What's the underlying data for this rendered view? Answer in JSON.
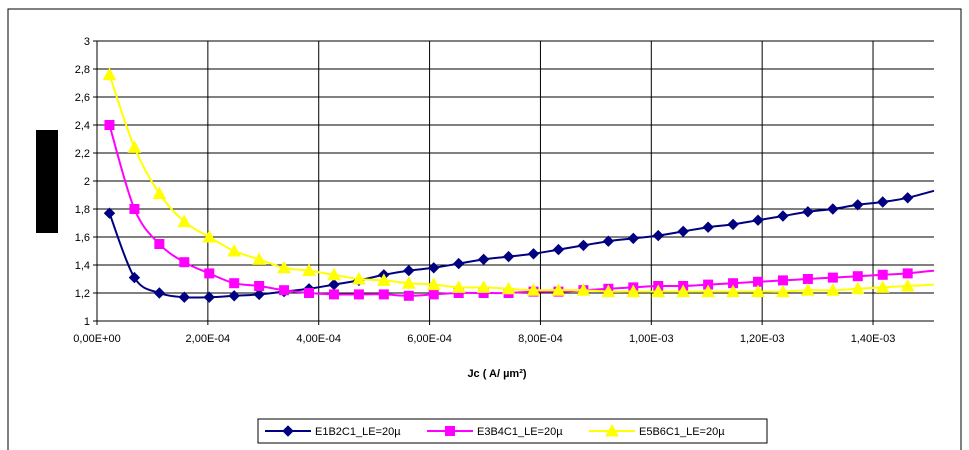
{
  "chart_data": {
    "type": "line",
    "title": "",
    "xlabel": "Jc ( A/ µm²)",
    "ylabel": "",
    "xlim": [
      0,
      0.00151
    ],
    "ylim": [
      1,
      3
    ],
    "grid": true,
    "legend_position": "bottom",
    "x_ticks": [
      0,
      0.0002,
      0.0004,
      0.0006,
      0.0008,
      0.001,
      0.0012,
      0.0014
    ],
    "x_tick_labels": [
      "0,00E+00",
      "2,00E-04",
      "4,00E-04",
      "6,00E-04",
      "8,00E-04",
      "1,00E-03",
      "1,20E-03",
      "1,40E-03"
    ],
    "y_ticks": [
      1,
      1.2,
      1.4,
      1.6,
      1.8,
      2,
      2.2,
      2.4,
      2.6,
      2.8,
      3
    ],
    "y_tick_labels": [
      "1",
      "1,2",
      "1,4",
      "1,6",
      "1,8",
      "2",
      "2,2",
      "2,4",
      "2,6",
      "2,8",
      "3"
    ],
    "x": [
      2.25e-05,
      6.75e-05,
      0.0001125,
      0.0001575,
      0.0002025,
      0.0002475,
      0.0002925,
      0.0003375,
      0.0003825,
      0.0004275,
      0.0004725,
      0.0005175,
      0.0005625,
      0.0006075,
      0.0006525,
      0.0006975,
      0.0007425,
      0.0007875,
      0.0008325,
      0.0008775,
      0.0009225,
      0.0009675,
      0.0010125,
      0.0010575,
      0.0011025,
      0.0011475,
      0.0011925,
      0.0012375,
      0.0012825,
      0.0013275,
      0.0013725,
      0.0014175,
      0.0014625
    ],
    "series": [
      {
        "name": "E1B2C1_LE=20µ",
        "color": "#000080",
        "marker": "diamond",
        "values": [
          1.77,
          1.31,
          1.2,
          1.17,
          1.17,
          1.18,
          1.19,
          1.21,
          1.23,
          1.26,
          1.29,
          1.33,
          1.36,
          1.38,
          1.41,
          1.44,
          1.46,
          1.48,
          1.51,
          1.54,
          1.57,
          1.59,
          1.61,
          1.64,
          1.67,
          1.69,
          1.72,
          1.75,
          1.78,
          1.8,
          1.83,
          1.85,
          1.88
        ],
        "end_value": 1.93
      },
      {
        "name": "E3B4C1_LE=20µ",
        "color": "#ff00ff",
        "marker": "square",
        "values": [
          2.4,
          1.8,
          1.55,
          1.42,
          1.34,
          1.27,
          1.25,
          1.22,
          1.2,
          1.19,
          1.19,
          1.19,
          1.18,
          1.19,
          1.2,
          1.2,
          1.2,
          1.21,
          1.21,
          1.22,
          1.23,
          1.24,
          1.25,
          1.25,
          1.26,
          1.27,
          1.28,
          1.29,
          1.3,
          1.31,
          1.32,
          1.33,
          1.34
        ],
        "end_value": 1.36
      },
      {
        "name": "E5B6C1_LE=20µ",
        "color": "#ffff00",
        "marker": "triangle",
        "values": [
          2.76,
          2.24,
          1.91,
          1.71,
          1.6,
          1.5,
          1.44,
          1.38,
          1.36,
          1.33,
          1.3,
          1.29,
          1.27,
          1.26,
          1.24,
          1.24,
          1.23,
          1.22,
          1.22,
          1.22,
          1.21,
          1.21,
          1.21,
          1.21,
          1.21,
          1.21,
          1.21,
          1.21,
          1.22,
          1.22,
          1.23,
          1.24,
          1.25
        ],
        "end_value": 1.26
      }
    ]
  }
}
